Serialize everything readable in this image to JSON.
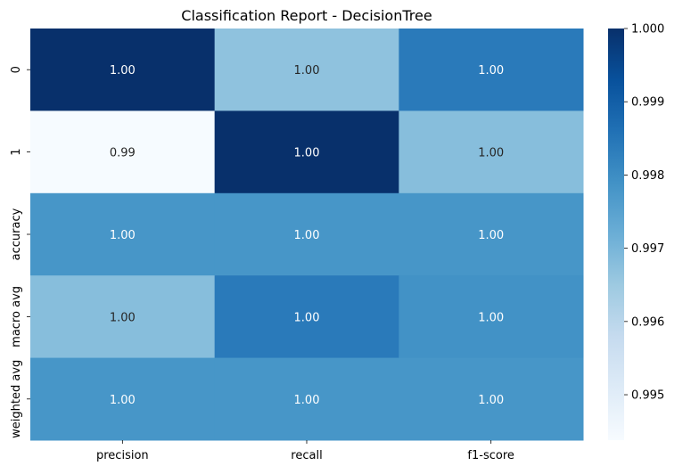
{
  "chart_data": {
    "type": "heatmap",
    "title": "Classification Report - DecisionTree",
    "xlabel": "",
    "ylabel": "",
    "columns": [
      "precision",
      "recall",
      "f1-score"
    ],
    "rows": [
      "0",
      "1",
      "accuracy",
      "macro avg",
      "weighted avg"
    ],
    "values": [
      [
        1.0,
        0.9967,
        0.9984
      ],
      [
        0.9944,
        1.0,
        0.9968
      ],
      [
        0.9978,
        0.9978,
        0.9978
      ],
      [
        0.9968,
        0.9984,
        0.9979
      ],
      [
        0.9978,
        0.9978,
        0.9978
      ]
    ],
    "annotations": [
      [
        "1.00",
        "1.00",
        "1.00"
      ],
      [
        "0.99",
        "1.00",
        "1.00"
      ],
      [
        "1.00",
        "1.00",
        "1.00"
      ],
      [
        "1.00",
        "1.00",
        "1.00"
      ],
      [
        "1.00",
        "1.00",
        "1.00"
      ]
    ],
    "colormap": "Blues",
    "colorbar": {
      "vmin": 0.99438,
      "vmax": 1.0,
      "ticks": [
        0.995,
        0.996,
        0.997,
        0.998,
        0.999,
        1.0
      ],
      "tick_labels": [
        "0.995",
        "0.996",
        "0.997",
        "0.998",
        "0.999",
        "1.000"
      ]
    },
    "colors": {
      "low": "#f7fbff",
      "high": "#08306b"
    }
  }
}
